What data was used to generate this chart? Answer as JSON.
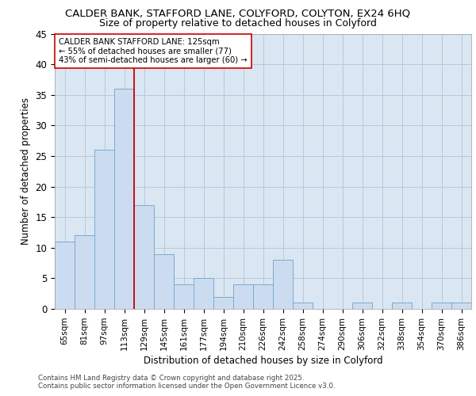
{
  "title_line1": "CALDER BANK, STAFFORD LANE, COLYFORD, COLYTON, EX24 6HQ",
  "title_line2": "Size of property relative to detached houses in Colyford",
  "xlabel": "Distribution of detached houses by size in Colyford",
  "ylabel": "Number of detached properties",
  "categories": [
    "65sqm",
    "81sqm",
    "97sqm",
    "113sqm",
    "129sqm",
    "145sqm",
    "161sqm",
    "177sqm",
    "194sqm",
    "210sqm",
    "226sqm",
    "242sqm",
    "258sqm",
    "274sqm",
    "290sqm",
    "306sqm",
    "322sqm",
    "338sqm",
    "354sqm",
    "370sqm",
    "386sqm"
  ],
  "values": [
    11,
    12,
    26,
    36,
    17,
    9,
    4,
    5,
    2,
    4,
    4,
    8,
    1,
    0,
    0,
    1,
    0,
    1,
    0,
    1,
    1
  ],
  "bar_color": "#ccdcf0",
  "bar_edge_color": "#7aaad0",
  "grid_color": "#b8c8dc",
  "background_color": "#dae6f2",
  "annotation_line1": "CALDER BANK STAFFORD LANE: 125sqm",
  "annotation_line2": "← 55% of detached houses are smaller (77)",
  "annotation_line3": "43% of semi-detached houses are larger (60) →",
  "vline_x": 4.0,
  "vline_color": "#cc0000",
  "annotation_box_facecolor": "#ffffff",
  "annotation_box_edgecolor": "#cc0000",
  "ylim": [
    0,
    45
  ],
  "yticks": [
    0,
    5,
    10,
    15,
    20,
    25,
    30,
    35,
    40,
    45
  ],
  "footer_line1": "Contains HM Land Registry data © Crown copyright and database right 2025.",
  "footer_line2": "Contains public sector information licensed under the Open Government Licence v3.0."
}
